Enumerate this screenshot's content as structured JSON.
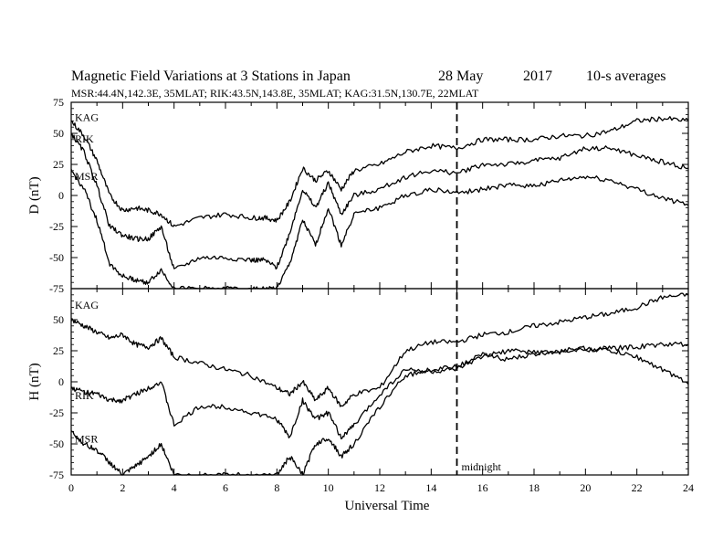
{
  "chart_data": {
    "type": "line",
    "title": "Magnetic Field Variations at 3 Stations in Japan",
    "date": "28 May",
    "year": "2017",
    "averaging": "10-s averages",
    "subtitle": "MSR:44.4N,142.3E, 35MLAT;  RIK:43.5N,143.8E, 35MLAT;  KAG:31.5N,130.7E, 22MLAT",
    "xlabel": "Universal Time",
    "xlim": [
      0,
      24
    ],
    "xticks": [
      "0",
      "2",
      "4",
      "6",
      "8",
      "10",
      "12",
      "14",
      "16",
      "18",
      "20",
      "22",
      "24"
    ],
    "annotation": {
      "text": "midnight",
      "x": 15
    },
    "panels": [
      {
        "ylabel": "D (nT)",
        "ylim": [
          -75,
          75
        ],
        "yticks": [
          "75",
          "50",
          "25",
          "0",
          "-25",
          "-50",
          "-75"
        ],
        "series": [
          {
            "name": "KAG",
            "x": [
              0,
              0.5,
              1,
              1.5,
              2,
              2.5,
              3,
              3.5,
              4,
              5,
              6,
              7,
              7.5,
              8,
              8.5,
              9,
              9.5,
              10,
              10.5,
              11,
              12,
              13,
              14,
              15,
              16,
              17,
              18,
              19,
              20,
              21,
              22,
              23,
              24
            ],
            "values": [
              60,
              48,
              28,
              0,
              -12,
              -10,
              -12,
              -15,
              -25,
              -18,
              -15,
              -18,
              -18,
              -20,
              -5,
              22,
              12,
              20,
              5,
              20,
              25,
              35,
              40,
              38,
              45,
              45,
              45,
              48,
              48,
              52,
              60,
              62,
              60
            ]
          },
          {
            "name": "RIK",
            "x": [
              0,
              0.5,
              1,
              1.5,
              2,
              2.5,
              3,
              3.5,
              4,
              5,
              6,
              7,
              7.5,
              8,
              8.5,
              9,
              9.5,
              10,
              10.5,
              11,
              12,
              13,
              14,
              15,
              16,
              17,
              18,
              19,
              20,
              21,
              22,
              23,
              24
            ],
            "values": [
              50,
              35,
              8,
              -25,
              -32,
              -35,
              -35,
              -25,
              -60,
              -50,
              -50,
              -52,
              -52,
              -58,
              -30,
              5,
              -10,
              10,
              -15,
              0,
              5,
              15,
              20,
              18,
              25,
              25,
              28,
              30,
              38,
              38,
              32,
              27,
              22
            ]
          },
          {
            "name": "MSR",
            "x": [
              0,
              0.5,
              1,
              1.5,
              2,
              2.5,
              3,
              3.5,
              4,
              5,
              6,
              7,
              7.5,
              8,
              8.5,
              9,
              9.5,
              10,
              10.5,
              11,
              12,
              13,
              14,
              15,
              16,
              17,
              18,
              19,
              20,
              21,
              22,
              23,
              24
            ],
            "values": [
              20,
              5,
              -20,
              -55,
              -65,
              -68,
              -70,
              -60,
              -75,
              -75,
              -75,
              -75,
              -75,
              -75,
              -55,
              -20,
              -40,
              -10,
              -40,
              -15,
              -10,
              0,
              5,
              2,
              5,
              8,
              8,
              12,
              15,
              12,
              5,
              -2,
              -8
            ]
          }
        ]
      },
      {
        "ylabel": "H (nT)",
        "ylim": [
          -75,
          75
        ],
        "yticks": [
          "75",
          "50",
          "25",
          "0",
          "-25",
          "-50",
          "-75"
        ],
        "series": [
          {
            "name": "KAG",
            "x": [
              0,
              0.5,
              1,
              1.5,
              2,
              2.5,
              3,
              3.5,
              4,
              5,
              6,
              7,
              8,
              8.5,
              9,
              9.5,
              10,
              10.5,
              11,
              12,
              13,
              14,
              15,
              16,
              17,
              18,
              19,
              20,
              21,
              22,
              23,
              24
            ],
            "values": [
              50,
              45,
              40,
              35,
              38,
              30,
              28,
              35,
              20,
              15,
              10,
              5,
              -5,
              -10,
              0,
              -15,
              -5,
              -20,
              -10,
              -5,
              25,
              32,
              32,
              38,
              40,
              45,
              48,
              52,
              55,
              60,
              68,
              70
            ]
          },
          {
            "name": "RIK",
            "x": [
              0,
              0.5,
              1,
              1.5,
              2,
              2.5,
              3,
              3.5,
              4,
              5,
              6,
              7,
              8,
              8.5,
              9,
              9.5,
              10,
              10.5,
              11,
              12,
              13,
              14,
              15,
              16,
              17,
              18,
              19,
              20,
              21,
              22,
              23,
              24
            ],
            "values": [
              -5,
              -8,
              -10,
              -15,
              -15,
              -10,
              -5,
              0,
              -35,
              -20,
              -20,
              -25,
              -30,
              -45,
              -15,
              -30,
              -25,
              -45,
              -35,
              -10,
              10,
              8,
              10,
              20,
              25,
              24,
              24,
              26,
              27,
              28,
              30,
              30
            ]
          },
          {
            "name": "MSR",
            "x": [
              0,
              0.5,
              1,
              1.5,
              2,
              2.5,
              3,
              3.5,
              4,
              5,
              6,
              7,
              8,
              8.5,
              9,
              9.5,
              10,
              10.5,
              11,
              12,
              13,
              14,
              15,
              16,
              17,
              18,
              19,
              20,
              21,
              22,
              23,
              24
            ],
            "values": [
              -40,
              -50,
              -55,
              -65,
              -75,
              -68,
              -60,
              -50,
              -75,
              -75,
              -75,
              -75,
              -75,
              -60,
              -75,
              -50,
              -45,
              -60,
              -50,
              -20,
              5,
              10,
              12,
              22,
              18,
              22,
              25,
              27,
              25,
              20,
              10,
              -2
            ]
          }
        ]
      }
    ]
  }
}
